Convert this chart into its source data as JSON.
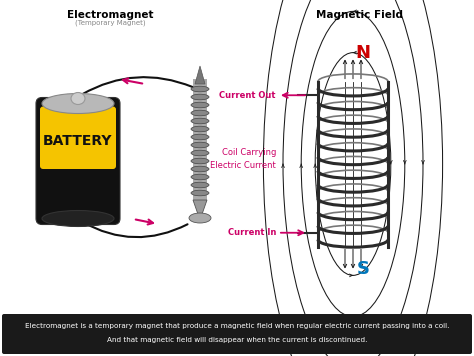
{
  "title_left": "Electromagnet",
  "subtitle_left": "(Temporary Magnet)",
  "title_right": "Magnetic Field",
  "battery_label": "BATTERY",
  "label_current_out": "Current Out",
  "label_current_in": "Current In",
  "label_coil": "Coil Carrying\nElectric Current",
  "label_N": "N",
  "label_S": "S",
  "footer_line1": "Electromagnet is a temporary magnet that produce a magnetic field when regular electric current passing into a coil.",
  "footer_line2": "And that magnetic field will disappear when the current is discontinued.",
  "bg_color": "#ffffff",
  "footer_bg": "#1a1a1a",
  "footer_text_color": "#ffffff",
  "battery_body_color": "#111111",
  "battery_yellow": "#f5c400",
  "battery_label_color": "#111111",
  "arrow_color": "#cc0066",
  "coil_color": "#2a2a2a",
  "field_line_color": "#1a1a1a",
  "N_color": "#cc0000",
  "S_color": "#0077bb",
  "wire_color": "#111111",
  "nail_color": "#555555",
  "nail_body_color": "#888888",
  "nail_thread_color": "#444444"
}
